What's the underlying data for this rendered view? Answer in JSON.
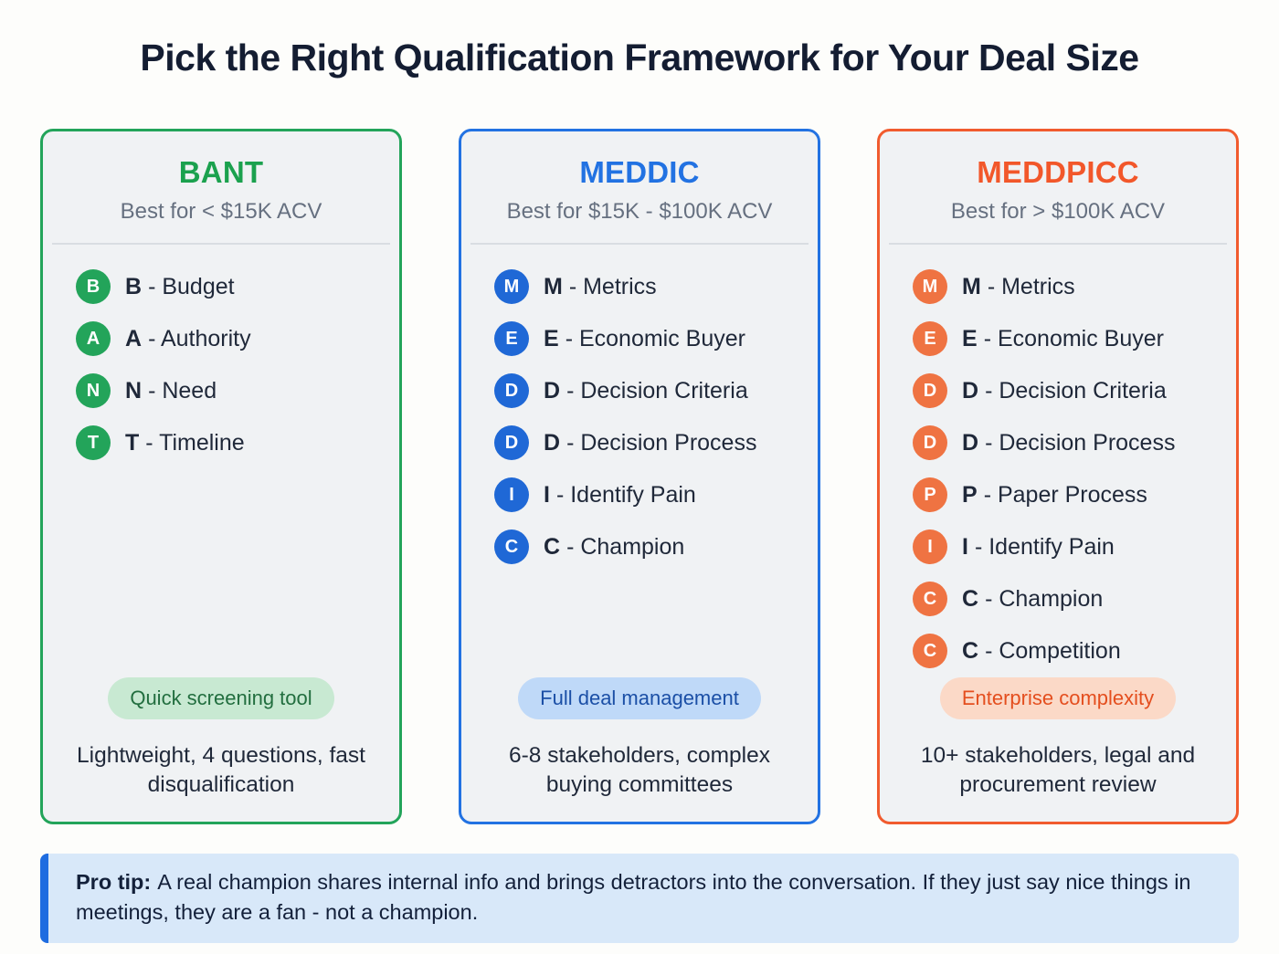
{
  "page": {
    "title": "Pick the Right Qualification Framework for Your Deal Size",
    "background": "#fdfdfb"
  },
  "frameworks": [
    {
      "name": "BANT",
      "subtitle": "Best for < $15K ACV",
      "tag": "Quick screening tool",
      "description": "Lightweight, 4 questions, fast disqualification",
      "colors": {
        "accent": "#23a45a",
        "badge": "#23a45a",
        "tag_bg": "#c8e9d2",
        "tag_text": "#226e3f"
      },
      "items": [
        {
          "letter": "B",
          "rest": "- Budget"
        },
        {
          "letter": "A",
          "rest": "- Authority"
        },
        {
          "letter": "N",
          "rest": "- Need"
        },
        {
          "letter": "T",
          "rest": "- Timeline"
        }
      ]
    },
    {
      "name": "MEDDIC",
      "subtitle": "Best for $15K - $100K ACV",
      "tag": "Full deal management",
      "description": "6-8 stakeholders, complex buying committees",
      "colors": {
        "accent": "#2272e2",
        "badge": "#1f68d6",
        "tag_bg": "#bfd9f8",
        "tag_text": "#1b4fa6"
      },
      "items": [
        {
          "letter": "M",
          "rest": "- Metrics"
        },
        {
          "letter": "E",
          "rest": "- Economic Buyer"
        },
        {
          "letter": "D",
          "rest": "- Decision Criteria"
        },
        {
          "letter": "D",
          "rest": "- Decision Process"
        },
        {
          "letter": "I",
          "rest": "- Identify Pain"
        },
        {
          "letter": "C",
          "rest": "- Champion"
        }
      ]
    },
    {
      "name": "MEDDPICC",
      "subtitle": "Best for > $100K ACV",
      "tag": "Enterprise complexity",
      "description": "10+ stakeholders, legal and procurement review",
      "colors": {
        "accent": "#f15b2e",
        "badge": "#ef7342",
        "tag_bg": "#fbd9c7",
        "tag_text": "#e44e1e"
      },
      "items": [
        {
          "letter": "M",
          "rest": "- Metrics"
        },
        {
          "letter": "E",
          "rest": "- Economic Buyer"
        },
        {
          "letter": "D",
          "rest": "- Decision Criteria"
        },
        {
          "letter": "D",
          "rest": "- Decision Process"
        },
        {
          "letter": "P",
          "rest": "- Paper Process"
        },
        {
          "letter": "I",
          "rest": "- Identify Pain"
        },
        {
          "letter": "C",
          "rest": "- Champion"
        },
        {
          "letter": "C",
          "rest": "- Competition"
        }
      ]
    }
  ],
  "pro_tip": {
    "label": "Pro tip:",
    "text": "A real champion shares internal info and brings detractors into the conversation. If they just say nice things in meetings, they are a fan - not a champion.",
    "accent": "#1e6ce0",
    "bg": "#d8e8f9"
  }
}
